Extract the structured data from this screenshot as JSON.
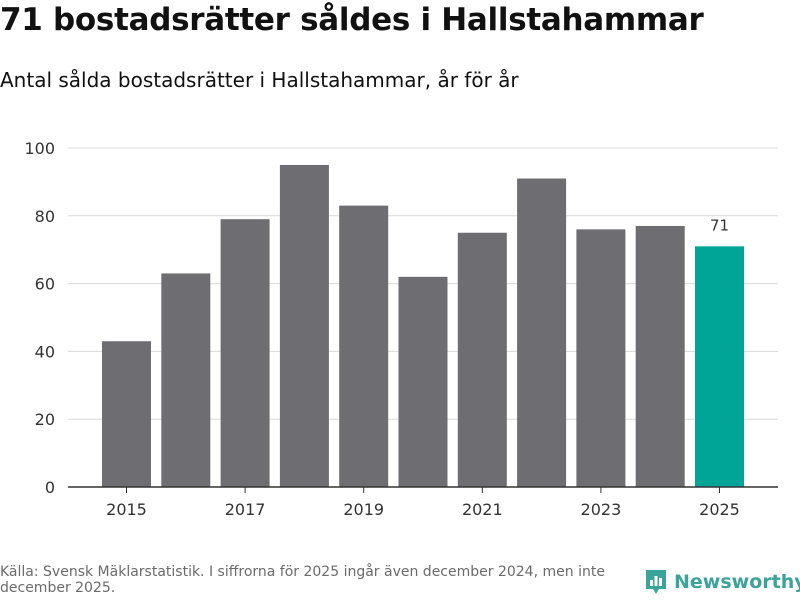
{
  "header": {
    "title": "71 bostadsrätter såldes i Hallstahammar",
    "subtitle": "Antal sålda bostadsrätter i Hallstahammar, år för år"
  },
  "chart_data": {
    "type": "bar",
    "categories": [
      "2015",
      "2016",
      "2017",
      "2018",
      "2019",
      "2020",
      "2021",
      "2022",
      "2023",
      "2024",
      "2025"
    ],
    "values": [
      43,
      63,
      79,
      95,
      83,
      62,
      75,
      91,
      76,
      77,
      71
    ],
    "x_tick_labels": [
      "2015",
      "2017",
      "2019",
      "2021",
      "2023",
      "2025"
    ],
    "y_ticks": [
      0,
      20,
      40,
      60,
      80,
      100
    ],
    "ylim": [
      0,
      100
    ],
    "highlight_index": 10,
    "data_labels": [
      {
        "index": 10,
        "text": "71"
      }
    ],
    "colors": {
      "default": "#6e6d72",
      "highlight": "#00a597",
      "grid": "#d9d9d9",
      "axis": "#333333"
    },
    "title": "Antal sålda bostadsrätter i Hallstahammar, år för år",
    "xlabel": "",
    "ylabel": ""
  },
  "footer": {
    "source": "Källa: Svensk Mäklarstatistik. I siffrorna för 2025 ingår även december 2024, men inte december 2025.",
    "brand": "Newsworthy",
    "brand_icon": "newsworthy-logo-icon",
    "brand_color": "#3aa39a"
  }
}
